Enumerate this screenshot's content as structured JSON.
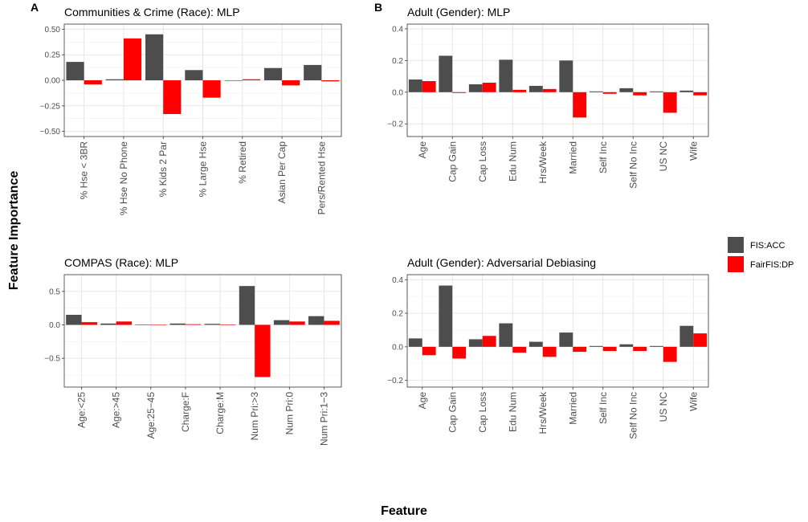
{
  "figure": {
    "y_title": "Feature Importance",
    "x_title": "Feature"
  },
  "legend": {
    "placement": "right",
    "items": [
      {
        "label": "FIS:ACC",
        "color": "#4d4d4d"
      },
      {
        "label": "FairFIS:DP",
        "color": "#ff0000"
      }
    ]
  },
  "chart_data": [
    {
      "type": "bar",
      "panel": "A",
      "title": "Communities & Crime (Race): MLP",
      "categories": [
        "% Hse < 3BR",
        "% Hse No Phone",
        "% Kids 2 Par",
        "% Large Hse",
        "% Retired",
        "Asian Per Cap",
        "Pers/Rented Hse"
      ],
      "series": [
        {
          "name": "FIS:ACC",
          "color": "#4d4d4d",
          "values": [
            0.18,
            0.01,
            0.45,
            0.1,
            0.0,
            0.12,
            0.15
          ]
        },
        {
          "name": "FairFIS:DP",
          "color": "#ff0000",
          "values": [
            -0.04,
            0.41,
            -0.33,
            -0.17,
            0.01,
            -0.05,
            -0.01
          ]
        }
      ],
      "ylim": [
        -0.55,
        0.55
      ],
      "yticks": [
        -0.5,
        -0.25,
        0.0,
        0.25,
        0.5
      ],
      "ytick_labels": [
        "−0.50",
        "−0.25",
        "0.00",
        "0.25",
        "0.50"
      ],
      "grid": true
    },
    {
      "type": "bar",
      "panel": "B",
      "title": "Adult (Gender): MLP",
      "categories": [
        "Age",
        "Cap Gain",
        "Cap Loss",
        "Edu Num",
        "Hrs/Week",
        "Married",
        "Self Inc",
        "Self No Inc",
        "US NC",
        "Wife"
      ],
      "series": [
        {
          "name": "FIS:ACC",
          "color": "#4d4d4d",
          "values": [
            0.08,
            0.23,
            0.05,
            0.205,
            0.04,
            0.2,
            0.005,
            0.025,
            0.005,
            0.01
          ]
        },
        {
          "name": "FairFIS:DP",
          "color": "#ff0000",
          "values": [
            0.07,
            -0.005,
            0.06,
            0.015,
            0.02,
            -0.16,
            -0.01,
            -0.02,
            -0.13,
            -0.02
          ]
        }
      ],
      "ylim": [
        -0.28,
        0.43
      ],
      "yticks": [
        -0.2,
        0.0,
        0.2,
        0.4
      ],
      "ytick_labels": [
        "−0.2",
        "0.0",
        "0.2",
        "0.4"
      ],
      "grid": true
    },
    {
      "type": "bar",
      "panel": "",
      "title": "COMPAS (Race): MLP",
      "categories": [
        "Age:<25",
        "Age:>45",
        "Age:25−45",
        "Charge:F",
        "Charge:M",
        "Num Pri:>3",
        "Num Pri:0",
        "Num Pri:1−3"
      ],
      "series": [
        {
          "name": "FIS:ACC",
          "color": "#4d4d4d",
          "values": [
            0.15,
            0.02,
            0.005,
            0.02,
            0.015,
            0.58,
            0.07,
            0.13
          ]
        },
        {
          "name": "FairFIS:DP",
          "color": "#ff0000",
          "values": [
            0.04,
            0.05,
            0.0,
            0.01,
            0.005,
            -0.78,
            0.05,
            0.06
          ]
        }
      ],
      "ylim": [
        -0.93,
        0.75
      ],
      "yticks": [
        -0.5,
        0.0,
        0.5
      ],
      "ytick_labels": [
        "−0.5",
        "0.0",
        "0.5"
      ],
      "grid": true
    },
    {
      "type": "bar",
      "panel": "",
      "title": "Adult (Gender): Adversarial Debiasing",
      "categories": [
        "Age",
        "Cap Gain",
        "Cap Loss",
        "Edu Num",
        "Hrs/Week",
        "Married",
        "Self Inc",
        "Self No Inc",
        "US NC",
        "Wife"
      ],
      "series": [
        {
          "name": "FIS:ACC",
          "color": "#4d4d4d",
          "values": [
            0.05,
            0.365,
            0.045,
            0.14,
            0.03,
            0.085,
            0.005,
            0.015,
            0.005,
            0.125
          ]
        },
        {
          "name": "FairFIS:DP",
          "color": "#ff0000",
          "values": [
            -0.05,
            -0.07,
            0.065,
            -0.035,
            -0.06,
            -0.03,
            -0.025,
            -0.025,
            -0.09,
            0.08
          ]
        }
      ],
      "ylim": [
        -0.24,
        0.43
      ],
      "yticks": [
        -0.2,
        0.0,
        0.2,
        0.4
      ],
      "ytick_labels": [
        "−0.2",
        "0.0",
        "0.2",
        "0.4"
      ],
      "grid": true
    }
  ]
}
